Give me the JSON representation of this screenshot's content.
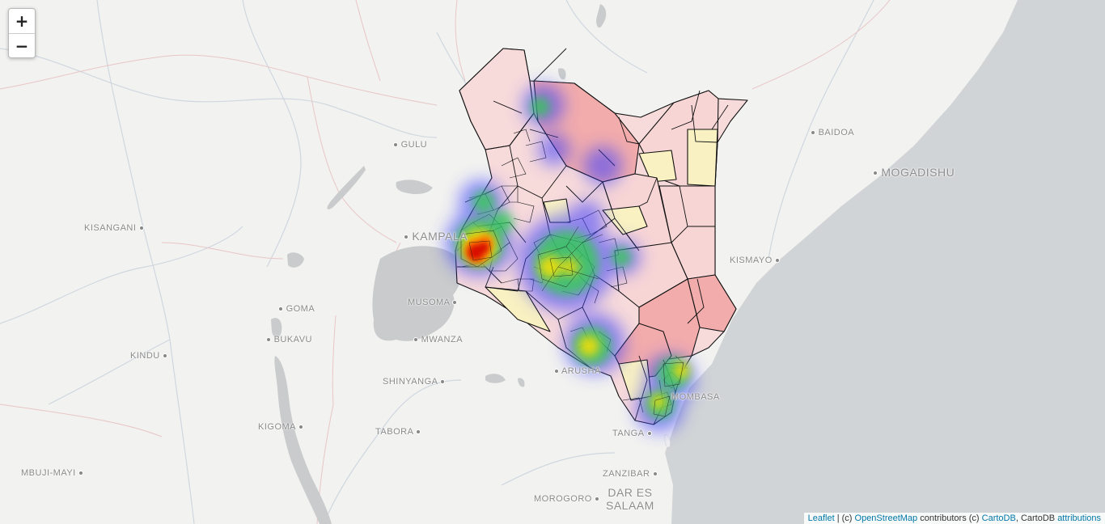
{
  "zoom": {
    "in_label": "+",
    "out_label": "−"
  },
  "attribution": {
    "leaflet": "Leaflet",
    "sep": " | (c) ",
    "osm": "OpenStreetMap",
    "mid": " contributors (c) ",
    "cartodb": "CartoDB",
    "tail": ", CartoDB ",
    "attributions": "attributions"
  },
  "cities": {
    "gulu": "GULU",
    "kisangani": "KISANGANI",
    "kampala": "KAMPALA",
    "goma": "GOMA",
    "bukavu": "BUKAVU",
    "kindu": "KINDU",
    "musoma": "MUSOMA",
    "mwanza": "MWANZA",
    "shinyanga": "SHINYANGA",
    "arusha": "ARUSHA",
    "kigoma": "KIGOMA",
    "tabora": "TABORA",
    "tanga": "TANGA",
    "mbujimayi": "MBUJI-MAYI",
    "zanzibar": "ZANZIBAR",
    "dar_line1": "DAR ES",
    "dar_line2": "SALAAM",
    "morogoro": "MOROGORO",
    "mombasa": "MOMBASA",
    "baidoa": "BAIDOA",
    "mogadishu": "MOGADISHU",
    "kismayo": "KISMAYO"
  },
  "colors": {
    "land": "#f2f2f0",
    "ocean": "#d1d4d6",
    "lake": "#c9cbcc",
    "border": "#e7c7c7",
    "river": "#cdd6df",
    "region_pink": "#f7d3d3",
    "region_red": "#f2a9a9",
    "region_yellow": "#f9f1c2",
    "heat_low": "#4a4aff",
    "heat_high": "#d40000"
  }
}
